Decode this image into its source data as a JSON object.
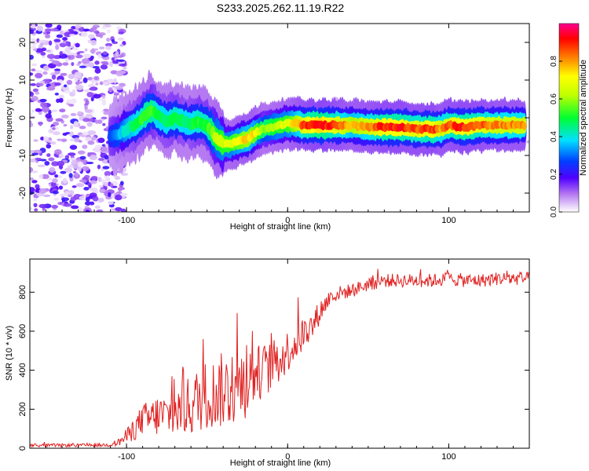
{
  "figure": {
    "title": "S233.2025.262.11.19.R22"
  },
  "chart_data": [
    {
      "type": "heatmap",
      "title": "S233.2025.262.11.19.R22",
      "xlabel": "Height of straight line (km)",
      "ylabel": "Frequency (Hz)",
      "xlim": [
        -160,
        150
      ],
      "ylim": [
        -25,
        25
      ],
      "xticks": [
        -100,
        0,
        100
      ],
      "yticks": [
        20,
        10,
        0,
        -10,
        -20
      ],
      "colorbar": {
        "label": "Normalized spectral amplitude",
        "range": [
          0.0,
          1.0
        ],
        "ticks": [
          "0.0",
          "0.2",
          "0.4",
          "0.6",
          "0.8"
        ],
        "tick_values": [
          0.0,
          0.2,
          0.4,
          0.6,
          0.8
        ]
      },
      "ridge": {
        "x": [
          -110,
          -105,
          -100,
          -95,
          -90,
          -85,
          -80,
          -75,
          -70,
          -65,
          -60,
          -55,
          -50,
          -45,
          -40,
          -35,
          -30,
          -25,
          -20,
          -15,
          -10,
          -5,
          0,
          5,
          10,
          20,
          30,
          40,
          50,
          60,
          70,
          80,
          90,
          95,
          100,
          110,
          120,
          130,
          140,
          148
        ],
        "y": [
          -5,
          -4.5,
          -3,
          -2,
          0,
          2,
          0.5,
          -1,
          0,
          -1,
          -1.5,
          -1,
          -2,
          -5,
          -7,
          -7,
          -6,
          -5.5,
          -4,
          -3,
          -2.5,
          -2,
          -1.5,
          -1.5,
          -2,
          -2,
          -2,
          -2,
          -2.5,
          -2.5,
          -2.5,
          -3,
          -3,
          -3,
          -2,
          -2.5,
          -2,
          -2,
          -2,
          -2
        ],
        "amplitude": [
          0.3,
          0.35,
          0.45,
          0.5,
          0.55,
          0.6,
          0.5,
          0.5,
          0.55,
          0.5,
          0.5,
          0.55,
          0.55,
          0.65,
          0.7,
          0.7,
          0.75,
          0.8,
          0.75,
          0.6,
          0.65,
          0.7,
          0.7,
          0.8,
          0.9,
          1.0,
          0.9,
          0.8,
          0.85,
          0.95,
          0.95,
          0.9,
          0.95,
          0.85,
          0.9,
          0.95,
          0.9,
          0.85,
          0.85,
          0.85
        ]
      },
      "noise_region_x": [
        -160,
        -105
      ]
    },
    {
      "type": "line",
      "xlabel": "Height of straight line (km)",
      "ylabel": "SNR (10 * v/v)",
      "xlim": [
        -160,
        150
      ],
      "ylim": [
        0,
        970
      ],
      "xticks": [
        -100,
        0,
        100
      ],
      "yticks": [
        0,
        200,
        400,
        600,
        800
      ],
      "series": [
        {
          "name": "SNR",
          "color": "#e02020",
          "x": [
            -160,
            -150,
            -140,
            -130,
            -120,
            -110,
            -105,
            -100,
            -95,
            -90,
            -85,
            -80,
            -75,
            -70,
            -65,
            -60,
            -55,
            -50,
            -45,
            -40,
            -35,
            -30,
            -25,
            -20,
            -15,
            -10,
            -5,
            0,
            5,
            10,
            15,
            20,
            25,
            30,
            40,
            50,
            60,
            70,
            80,
            90,
            100,
            110,
            120,
            130,
            140,
            150
          ],
          "y": [
            15,
            15,
            15,
            15,
            15,
            18,
            30,
            60,
            100,
            150,
            150,
            170,
            170,
            180,
            200,
            220,
            250,
            280,
            280,
            300,
            300,
            320,
            340,
            380,
            400,
            420,
            450,
            500,
            540,
            590,
            620,
            700,
            760,
            790,
            810,
            840,
            860,
            860,
            860,
            860,
            870,
            860,
            860,
            870,
            870,
            870
          ],
          "amplitude": [
            8,
            8,
            8,
            8,
            8,
            10,
            20,
            40,
            60,
            80,
            100,
            110,
            110,
            120,
            140,
            160,
            170,
            180,
            180,
            200,
            190,
            190,
            180,
            150,
            140,
            130,
            120,
            110,
            100,
            90,
            80,
            60,
            50,
            40,
            35,
            35,
            35,
            35,
            35,
            35,
            35,
            35,
            35,
            35,
            35,
            35
          ]
        }
      ]
    }
  ]
}
